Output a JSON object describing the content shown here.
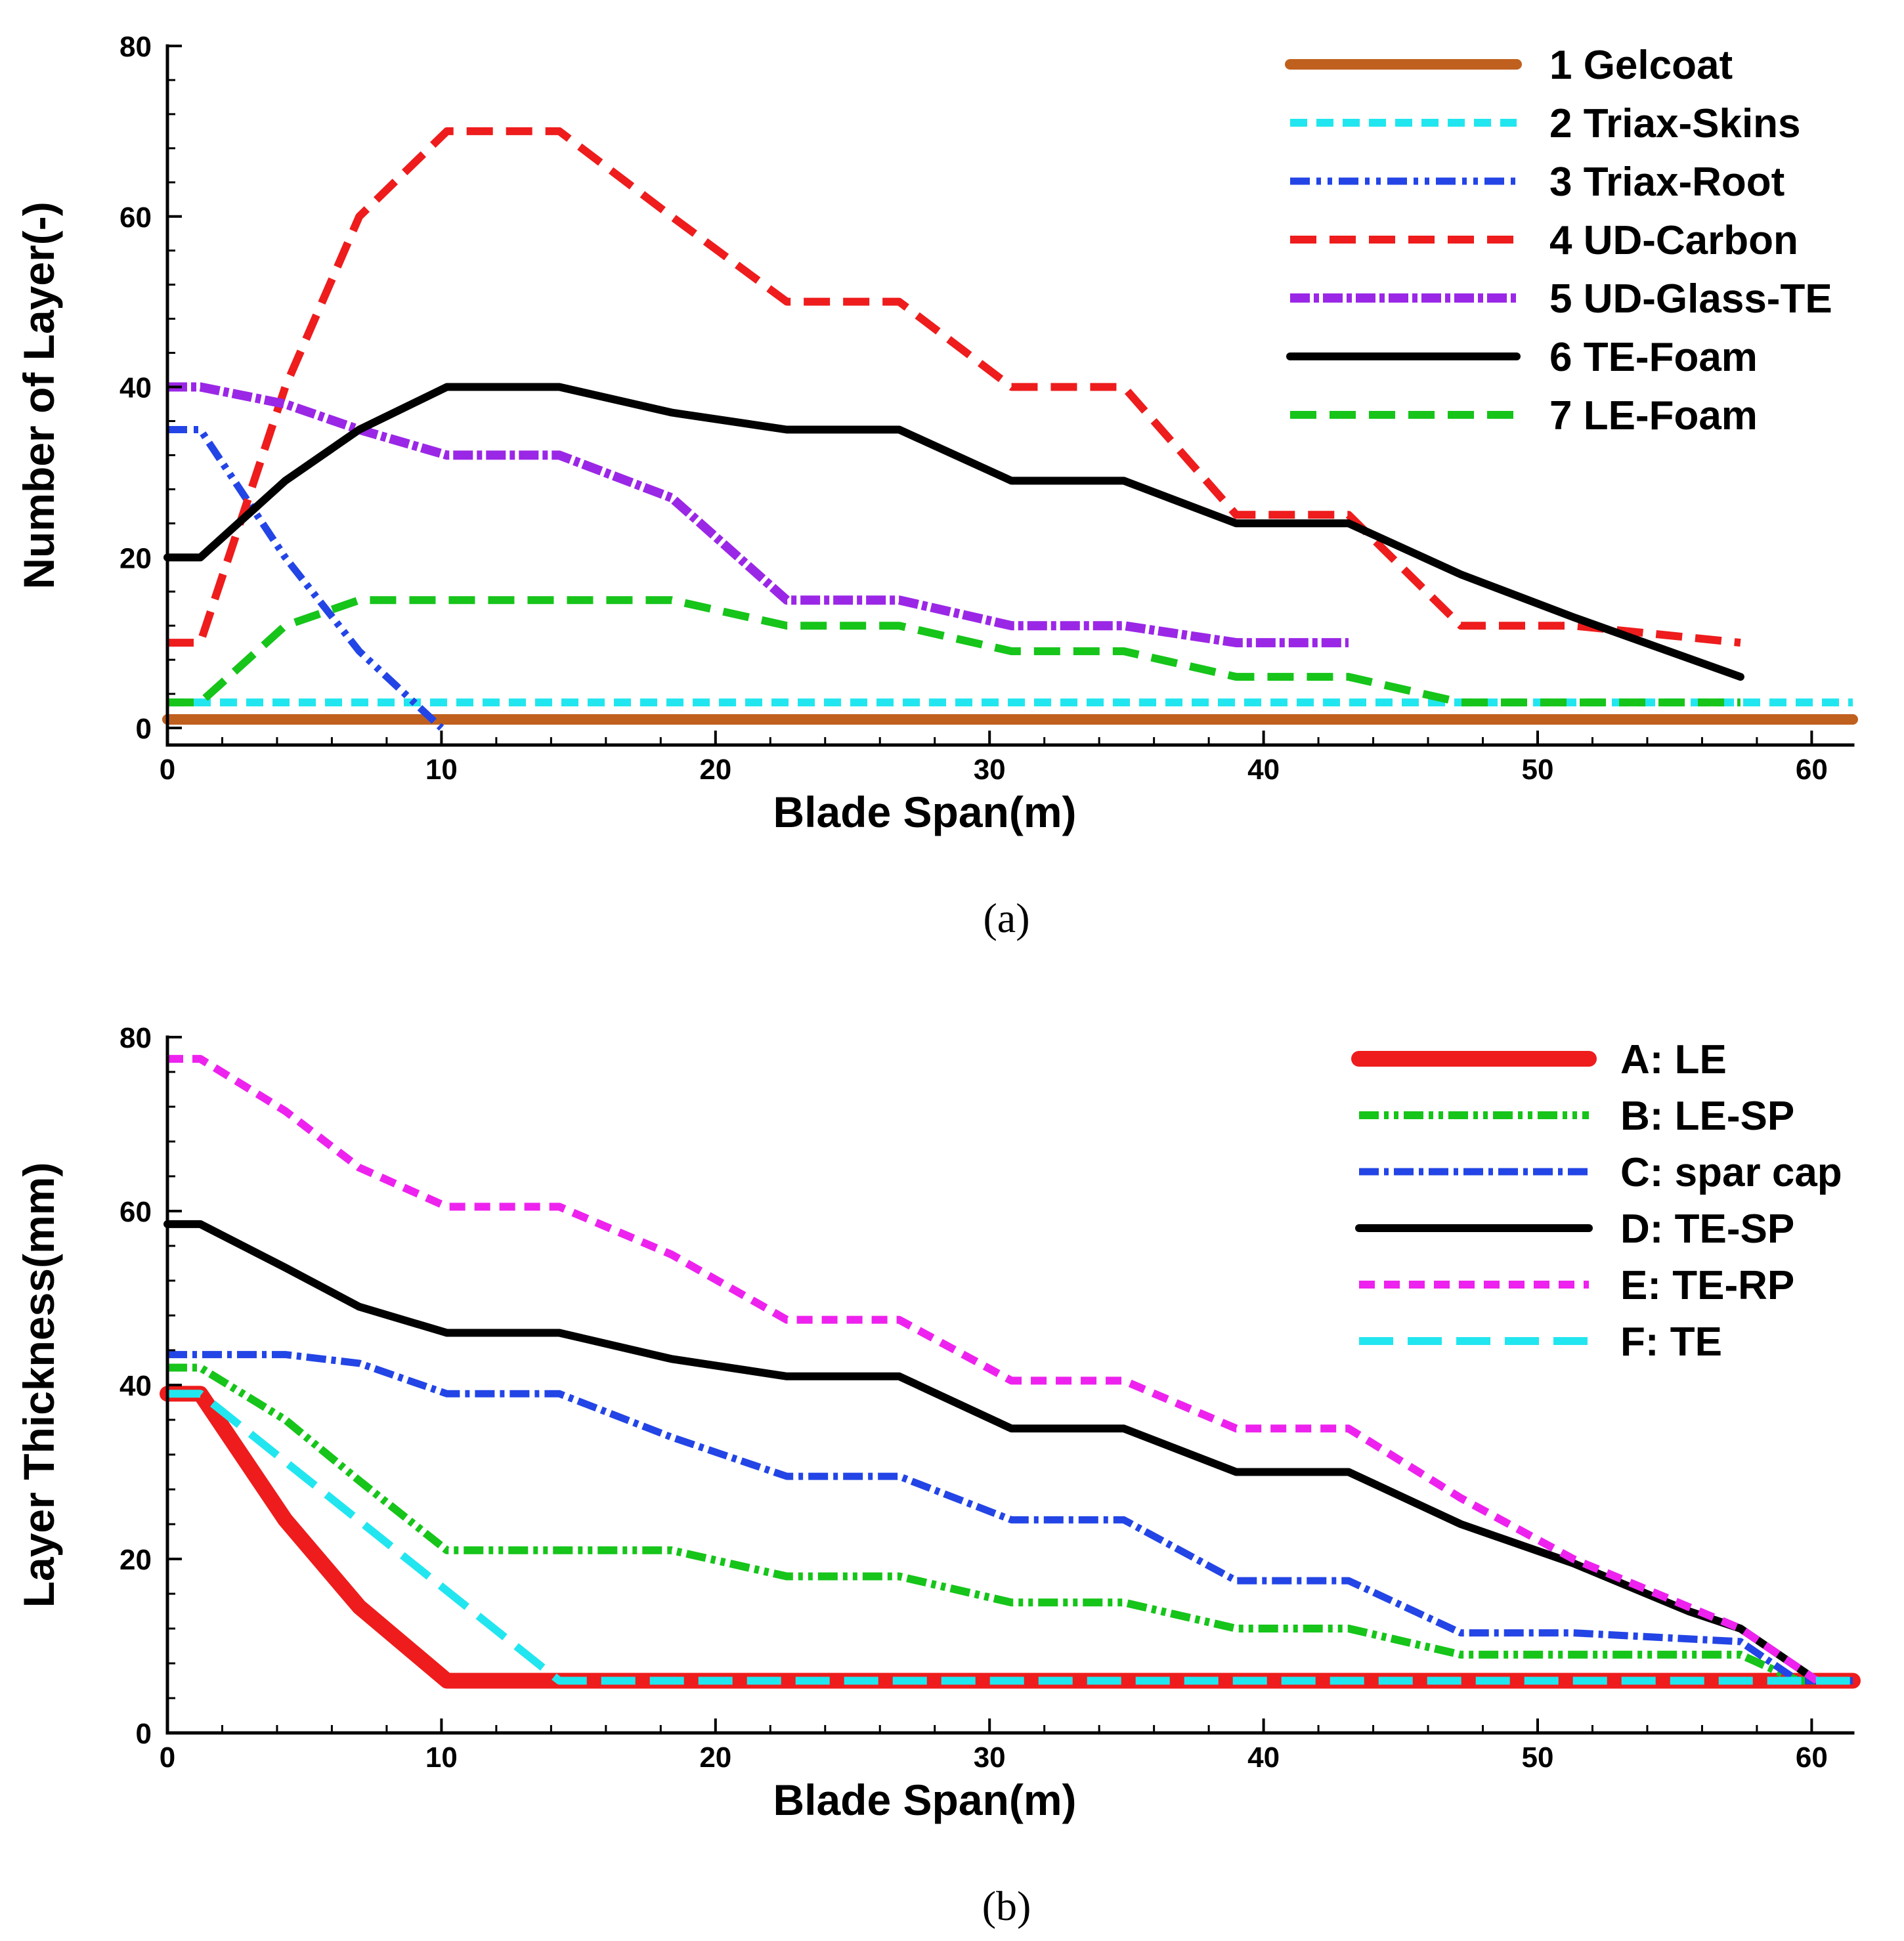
{
  "chart_data": [
    {
      "type": "line",
      "caption": "(a)",
      "xlabel": "Blade Span(m)",
      "ylabel": "Number of Layer(-)",
      "xlim": [
        0,
        61.5
      ],
      "ylim": [
        -2,
        80
      ],
      "xticks": [
        0,
        10,
        20,
        30,
        40,
        50,
        60
      ],
      "yticks": [
        0,
        20,
        40,
        60,
        80
      ],
      "legend_position": "top-right",
      "series": [
        {
          "name": "1 Gelcoat",
          "color": "#c0601e",
          "dash": "",
          "width": 16,
          "x": [
            0,
            61.5
          ],
          "y": [
            1,
            1
          ]
        },
        {
          "name": "2 Triax-Skins",
          "color": "#22e6ef",
          "dash": "26,14",
          "width": 12,
          "x": [
            0,
            61.5
          ],
          "y": [
            3,
            3
          ]
        },
        {
          "name": "3 Triax-Root",
          "color": "#2345e6",
          "dash": "30,10,7,10,7,10",
          "width": 11,
          "x": [
            0,
            1.2,
            4.3,
            7,
            10
          ],
          "y": [
            35,
            35,
            20,
            9,
            0
          ]
        },
        {
          "name": "4 UD-Carbon",
          "color": "#ee1c1c",
          "dash": "40,20",
          "width": 12,
          "x": [
            0,
            1.2,
            4.3,
            7,
            10.2,
            14.3,
            18.4,
            22.6,
            26.7,
            30.8,
            34.9,
            39,
            43.1,
            47.2,
            51.3,
            57.4
          ],
          "y": [
            10,
            10,
            40,
            60,
            70,
            70,
            60,
            50,
            50,
            40,
            40,
            25,
            25,
            12,
            12,
            10
          ]
        },
        {
          "name": "5 UD-Glass-TE",
          "color": "#9b27e6",
          "dash": "30,6,8,6",
          "width": 14,
          "x": [
            0,
            1.2,
            4.3,
            7,
            10.2,
            14.3,
            18.4,
            22.6,
            26.7,
            30.8,
            34.9,
            39,
            43.1
          ],
          "y": [
            40,
            40,
            38,
            35,
            32,
            32,
            27,
            15,
            15,
            12,
            12,
            10,
            10
          ]
        },
        {
          "name": "6 TE-Foam",
          "color": "#000000",
          "dash": "",
          "width": 12,
          "x": [
            0,
            1.2,
            4.3,
            7,
            10.2,
            14.3,
            18.4,
            22.6,
            26.7,
            30.8,
            34.9,
            39,
            43.1,
            47.2,
            51.3,
            57.4
          ],
          "y": [
            20,
            20,
            29,
            35,
            40,
            40,
            37,
            35,
            35,
            29,
            29,
            24,
            24,
            18,
            13,
            6
          ]
        },
        {
          "name": "7 LE-Foam",
          "color": "#16c41a",
          "dash": "40,20",
          "width": 12,
          "x": [
            0,
            1.2,
            4.3,
            7,
            10.2,
            14.3,
            18.4,
            22.6,
            26.7,
            30.8,
            34.9,
            39,
            43.1,
            47.2,
            51.3,
            57.4
          ],
          "y": [
            3,
            3,
            12,
            15,
            15,
            15,
            15,
            12,
            12,
            9,
            9,
            6,
            6,
            3,
            3,
            3
          ]
        }
      ]
    },
    {
      "type": "line",
      "caption": "(b)",
      "xlabel": "Blade Span(m)",
      "ylabel": "Layer Thickness(mm)",
      "xlim": [
        0,
        61.5
      ],
      "ylim": [
        0,
        80
      ],
      "xticks": [
        0,
        10,
        20,
        30,
        40,
        50,
        60
      ],
      "yticks": [
        0,
        20,
        40,
        60,
        80
      ],
      "legend_position": "top-right",
      "series": [
        {
          "name": "A: LE",
          "color": "#ee1c1c",
          "dash": "",
          "width": 24,
          "x": [
            0,
            1.2,
            4.3,
            7,
            10.2,
            14.3,
            61.5
          ],
          "y": [
            39,
            39,
            24.5,
            14.5,
            6,
            6,
            6
          ]
        },
        {
          "name": "B: LE-SP",
          "color": "#16c41a",
          "dash": "30,8,7,8,7,8",
          "width": 12,
          "x": [
            0,
            1.2,
            4.3,
            7,
            10.2,
            14.3,
            18.4,
            22.6,
            26.7,
            30.8,
            34.9,
            39,
            43.1,
            47.2,
            51.3,
            57.4,
            59.5,
            61.5
          ],
          "y": [
            42,
            42,
            36,
            29,
            21,
            21,
            21,
            18,
            18,
            15,
            15,
            12,
            12,
            9,
            9,
            9,
            6,
            6
          ]
        },
        {
          "name": "C: spar cap",
          "color": "#2345e6",
          "dash": "30,8,7,8",
          "width": 11,
          "x": [
            0,
            1.2,
            4.3,
            7,
            10.2,
            14.3,
            18.4,
            22.6,
            26.7,
            30.8,
            34.9,
            39,
            43.1,
            47.2,
            51.3,
            57.4,
            59.5,
            61.5
          ],
          "y": [
            43.5,
            43.5,
            43.5,
            42.5,
            39,
            39,
            34,
            29.5,
            29.5,
            24.5,
            24.5,
            17.5,
            17.5,
            11.5,
            11.5,
            10.5,
            6,
            6
          ]
        },
        {
          "name": "D: TE-SP",
          "color": "#000000",
          "dash": "",
          "width": 12,
          "x": [
            0,
            1.2,
            4.3,
            7,
            10.2,
            14.3,
            18.4,
            22.6,
            26.7,
            30.8,
            34.9,
            39,
            43.1,
            47.2,
            51.3,
            55.5,
            57.4,
            60.2
          ],
          "y": [
            58.5,
            58.5,
            53.5,
            49,
            46,
            46,
            43,
            41,
            41,
            35,
            35,
            30,
            30,
            24,
            19.5,
            14,
            12,
            6
          ]
        },
        {
          "name": "E: TE-RP",
          "color": "#ee22ee",
          "dash": "24,14",
          "width": 12,
          "x": [
            0,
            1.2,
            4.3,
            7,
            10.2,
            14.3,
            18.4,
            22.6,
            26.7,
            30.8,
            34.9,
            39,
            43.1,
            47.2,
            51.3,
            55.5,
            57.4,
            60.2
          ],
          "y": [
            77.5,
            77.5,
            71.5,
            65,
            60.5,
            60.5,
            55,
            47.5,
            47.5,
            40.5,
            40.5,
            35,
            35,
            27,
            20,
            14.5,
            12,
            6
          ]
        },
        {
          "name": "F: TE",
          "color": "#22e6ef",
          "dash": "52,22",
          "width": 12,
          "x": [
            0,
            1.2,
            14.3,
            61.5
          ],
          "y": [
            39,
            39,
            6,
            6
          ]
        }
      ]
    }
  ]
}
